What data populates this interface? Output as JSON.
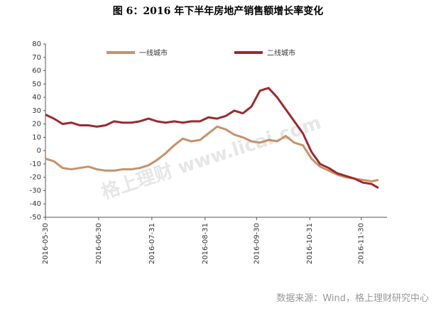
{
  "chart_data": {
    "type": "line",
    "title": "图 6：2016 年下半年房地产销售额增长率变化",
    "source": "数据来源：Wind，格上理财研究中心",
    "watermark": "格上理财  www.licai.com",
    "x": [
      "2016-05-30",
      "2016-06-04",
      "2016-06-09",
      "2016-06-14",
      "2016-06-19",
      "2016-06-24",
      "2016-06-29",
      "2016-07-04",
      "2016-07-09",
      "2016-07-14",
      "2016-07-19",
      "2016-07-24",
      "2016-07-29",
      "2016-08-03",
      "2016-08-08",
      "2016-08-13",
      "2016-08-18",
      "2016-08-23",
      "2016-08-28",
      "2016-09-02",
      "2016-09-07",
      "2016-09-12",
      "2016-09-17",
      "2016-09-22",
      "2016-09-27",
      "2016-10-02",
      "2016-10-07",
      "2016-10-12",
      "2016-10-17",
      "2016-10-22",
      "2016-10-27",
      "2016-11-01",
      "2016-11-06",
      "2016-11-11",
      "2016-11-16",
      "2016-11-21",
      "2016-11-26",
      "2016-12-01",
      "2016-12-06",
      "2016-12-10"
    ],
    "series": [
      {
        "name": "一线城市",
        "color": "#c4926a",
        "values": [
          -6,
          -8,
          -13,
          -14,
          -13,
          -12,
          -14,
          -15,
          -15,
          -14,
          -14,
          -13,
          -11,
          -7,
          -2,
          4,
          9,
          7,
          8,
          13,
          18,
          16,
          12,
          10,
          7,
          6,
          8,
          7,
          11,
          6,
          4,
          -6,
          -12,
          -15,
          -18,
          -20,
          -21,
          -22,
          -23,
          -22
        ]
      },
      {
        "name": "二线城市",
        "color": "#9b2a2e",
        "values": [
          27,
          24,
          20,
          21,
          19,
          19,
          18,
          19,
          22,
          21,
          21,
          22,
          24,
          22,
          21,
          22,
          21,
          22,
          22,
          25,
          24,
          26,
          30,
          28,
          33,
          45,
          47,
          40,
          31,
          22,
          13,
          -1,
          -10,
          -13,
          -17,
          -19,
          -21,
          -24,
          -25,
          -28
        ]
      }
    ],
    "xlim": [
      "2016-05-30",
      "2016-12-15"
    ],
    "xticks": [
      "2016-05-30",
      "2016-06-30",
      "2016-07-31",
      "2016-08-31",
      "2016-09-30",
      "2016-10-31",
      "2016-11-30"
    ],
    "ylim": [
      -50,
      80
    ],
    "yticks": [
      -50,
      -40,
      -30,
      -20,
      -10,
      0,
      10,
      20,
      30,
      40,
      50,
      60,
      70,
      80
    ],
    "legend": "top"
  }
}
